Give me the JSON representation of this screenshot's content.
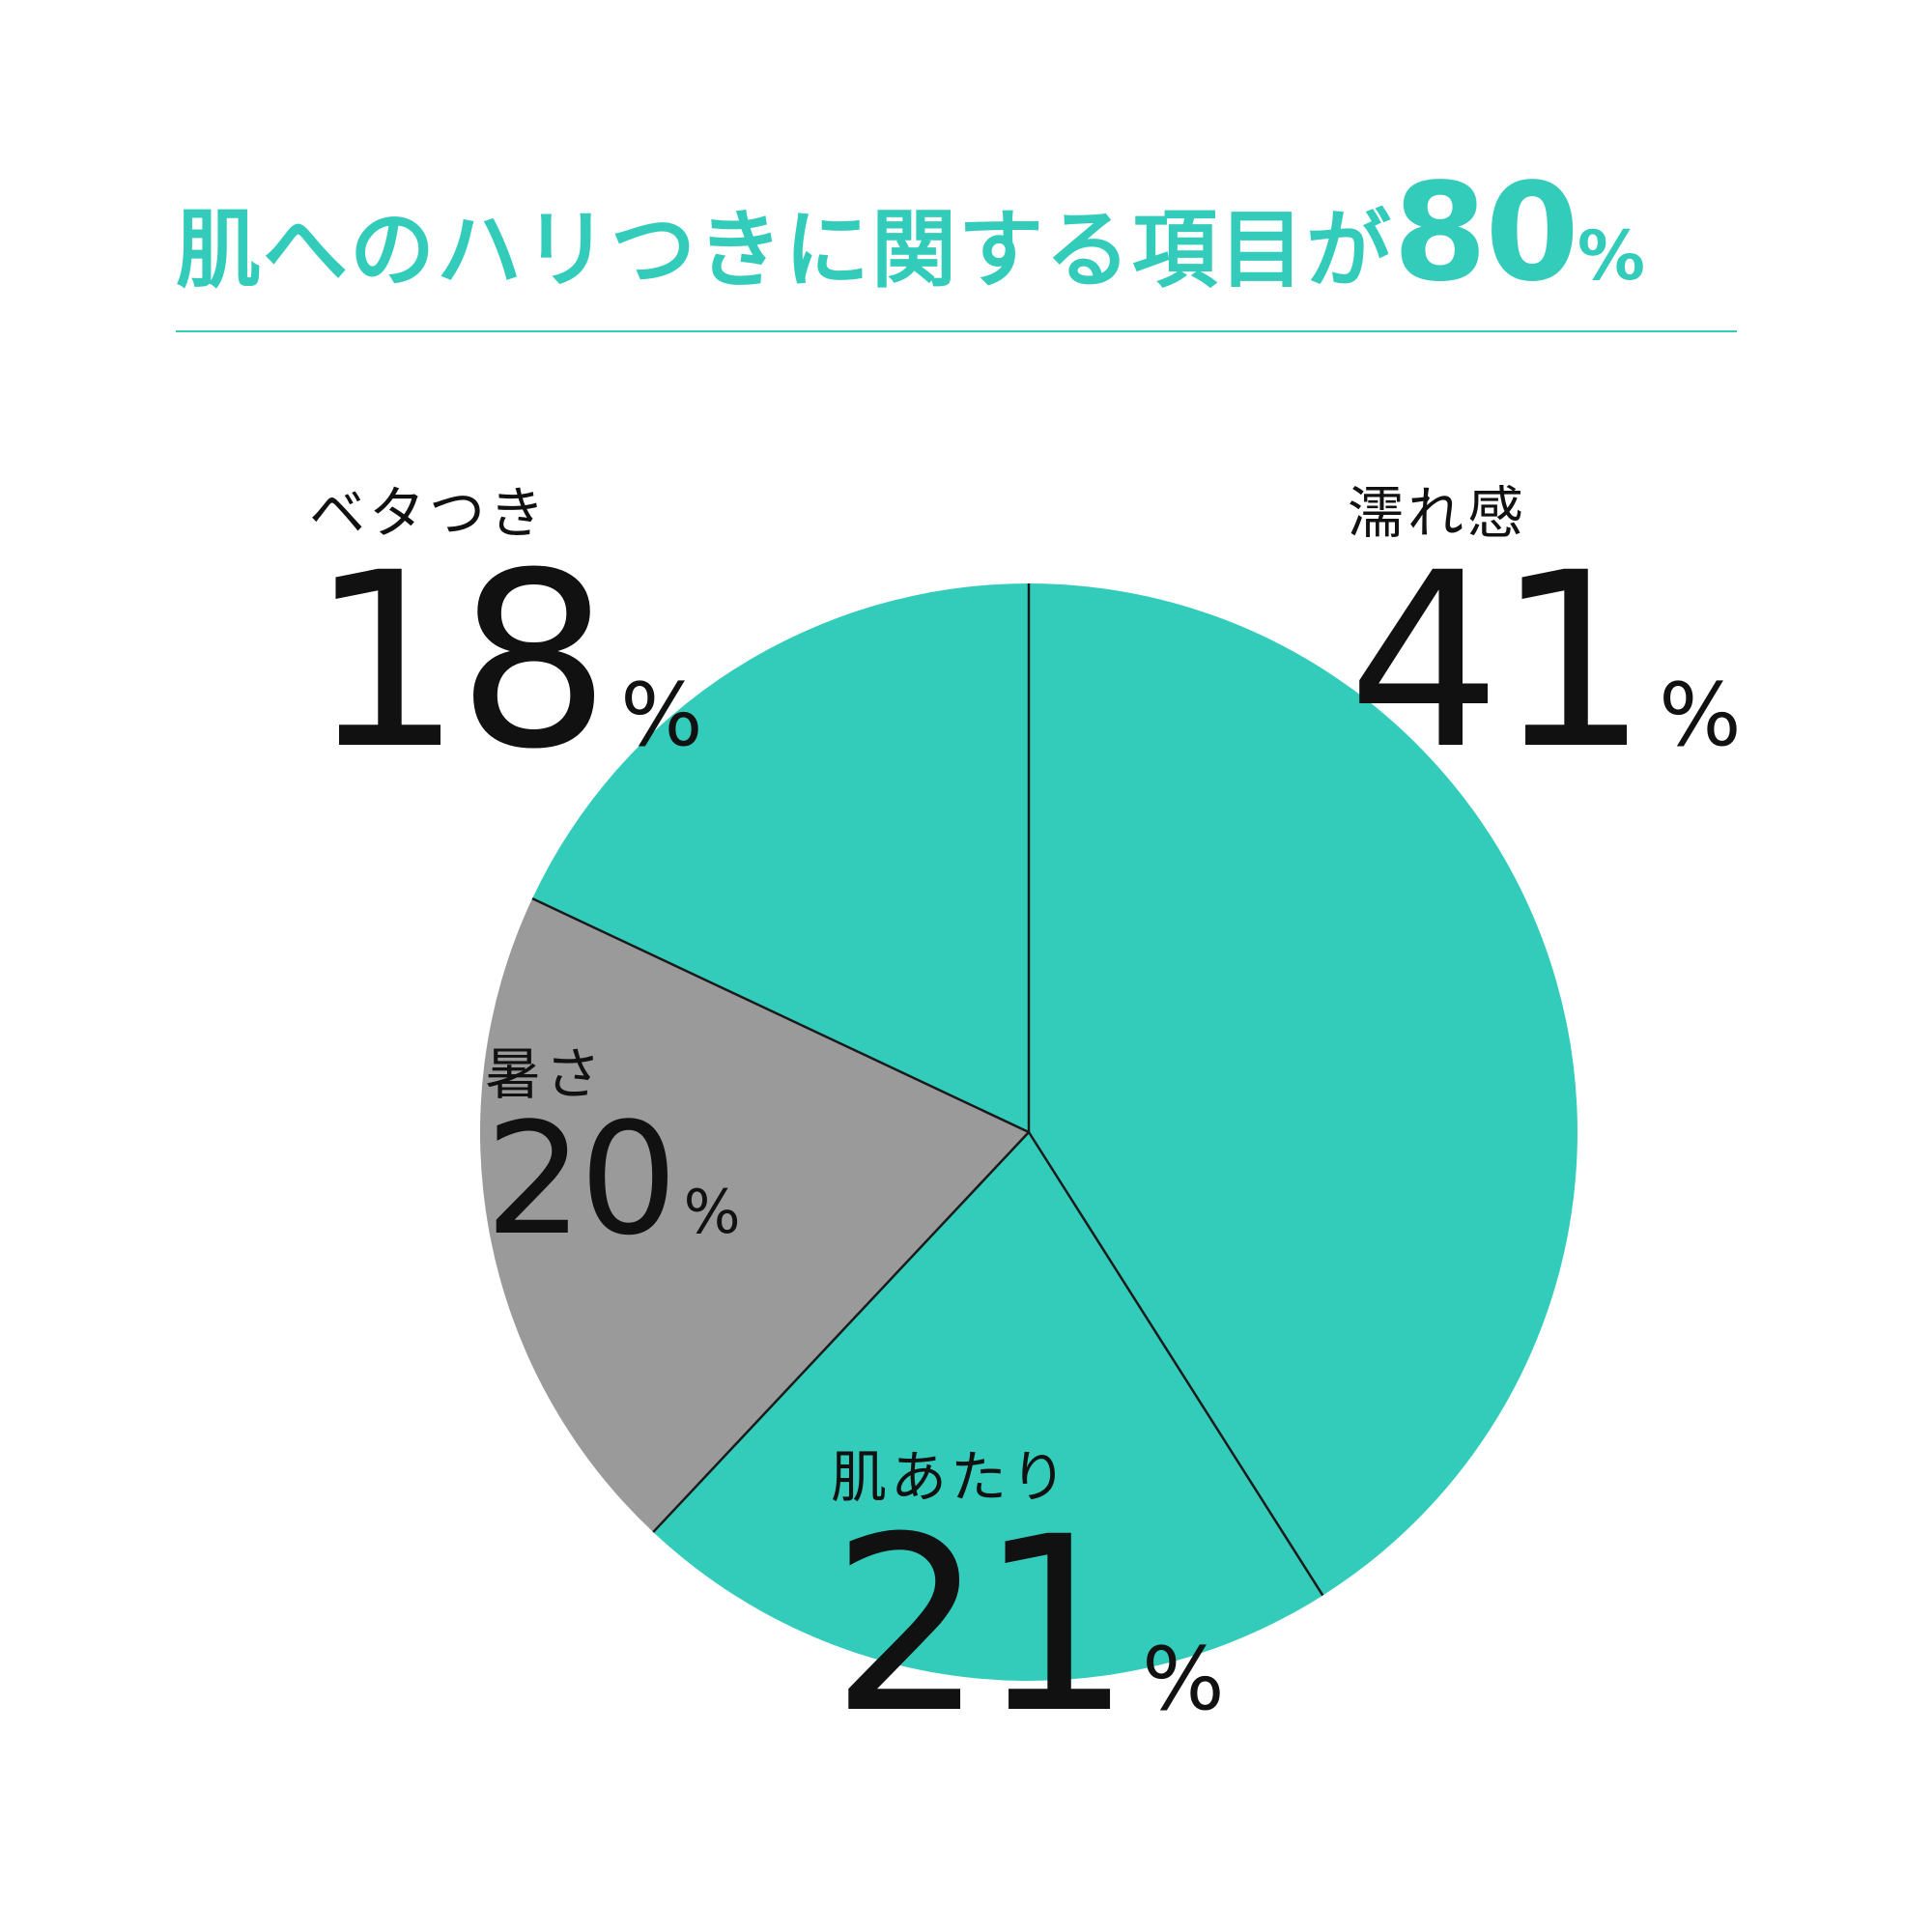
{
  "header": {
    "text": "肌へのハリつきに関する項目が",
    "highlight_value": "80",
    "highlight_unit": "%"
  },
  "colors": {
    "accent": "#33ccbb",
    "gray": "#9a9a9a",
    "line": "#1a1a1a",
    "text": "#111111"
  },
  "chart_data": {
    "type": "pie",
    "start_angle_deg": 0,
    "direction": "clockwise",
    "slices": [
      {
        "label": "濡れ感",
        "value": 41,
        "display_value": "41",
        "unit": "%",
        "color": "#33ccbb"
      },
      {
        "label": "肌あたり",
        "value": 21,
        "display_value": "21",
        "unit": "%",
        "color": "#33ccbb"
      },
      {
        "label": "暑さ",
        "value": 20,
        "display_value": "20",
        "unit": "%",
        "color": "#9a9a9a"
      },
      {
        "label": "ベタつき",
        "value": 18,
        "display_value": "18",
        "unit": "%",
        "color": "#33ccbb"
      }
    ]
  }
}
